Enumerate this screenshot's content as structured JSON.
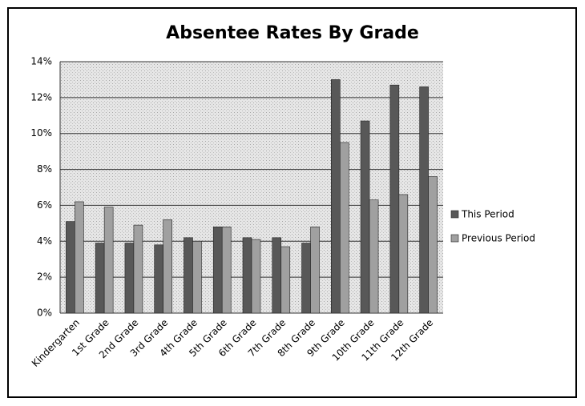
{
  "chart_data": {
    "type": "bar",
    "title": "Absentee Rates By Grade",
    "categories": [
      "Kindergarten",
      "1st Grade",
      "2nd Grade",
      "3rd Grade",
      "4th Grade",
      "5th Grade",
      "6th Grade",
      "7th Grade",
      "8th Grade",
      "9th Grade",
      "10th Grade",
      "11th Grade",
      "12th Grade"
    ],
    "series": [
      {
        "name": "This Period",
        "color": "#585858",
        "values": [
          5.1,
          3.9,
          3.9,
          3.8,
          4.2,
          4.8,
          4.2,
          4.2,
          3.9,
          13.0,
          10.7,
          12.7,
          12.6
        ]
      },
      {
        "name": "Previous Period",
        "color": "#a0a0a0",
        "values": [
          6.2,
          5.9,
          4.9,
          5.2,
          4.0,
          4.8,
          4.1,
          3.7,
          4.8,
          9.5,
          6.3,
          6.6,
          7.6
        ]
      }
    ],
    "ylim": [
      0,
      14
    ],
    "yticks": [
      {
        "value": 0,
        "label": "0%"
      },
      {
        "value": 2,
        "label": "2%"
      },
      {
        "value": 4,
        "label": "4%"
      },
      {
        "value": 6,
        "label": "6%"
      },
      {
        "value": 8,
        "label": "8%"
      },
      {
        "value": 10,
        "label": "10%"
      },
      {
        "value": 12,
        "label": "12%"
      },
      {
        "value": 14,
        "label": "14%"
      }
    ],
    "grid": true,
    "legend": "right"
  }
}
